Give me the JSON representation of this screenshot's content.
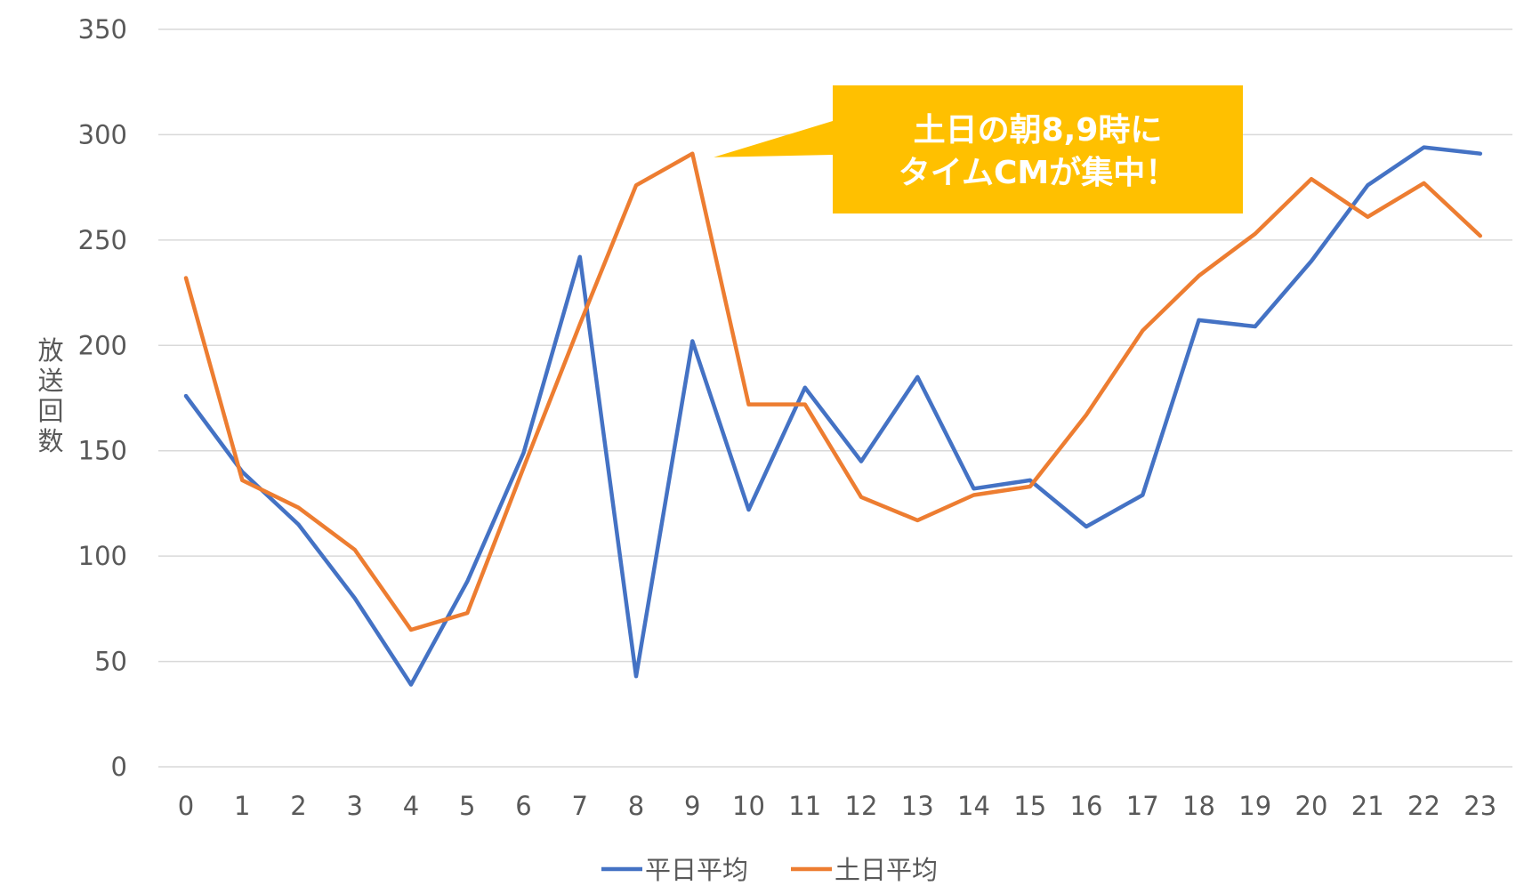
{
  "chart_data": {
    "type": "line",
    "categories": [
      "0",
      "1",
      "2",
      "3",
      "4",
      "5",
      "6",
      "7",
      "8",
      "9",
      "10",
      "11",
      "12",
      "13",
      "14",
      "15",
      "16",
      "17",
      "18",
      "19",
      "20",
      "21",
      "22",
      "23"
    ],
    "series": [
      {
        "name": "平日平均",
        "color": "#4472C4",
        "values": [
          176,
          140,
          115,
          80,
          39,
          88,
          149,
          242,
          43,
          202,
          122,
          180,
          145,
          185,
          132,
          136,
          114,
          129,
          212,
          209,
          240,
          276,
          294,
          291
        ]
      },
      {
        "name": "土日平均",
        "color": "#ED7D31",
        "values": [
          232,
          136,
          123,
          103,
          65,
          73,
          142,
          210,
          276,
          291,
          172,
          172,
          128,
          117,
          129,
          133,
          167,
          207,
          233,
          253,
          279,
          261,
          277,
          252
        ]
      }
    ],
    "ylabel": "放送回数",
    "xlabel": "",
    "ylim": [
      0,
      350
    ],
    "yticks": [
      0,
      50,
      100,
      150,
      200,
      250,
      300,
      350
    ],
    "grid": true,
    "legend": "bottom",
    "annotation": {
      "lines": [
        "土日の朝8,9時に",
        "タイムCMが集中！"
      ],
      "color": "#FFC000",
      "points_to": {
        "series": "土日平均",
        "x": "9"
      }
    }
  }
}
